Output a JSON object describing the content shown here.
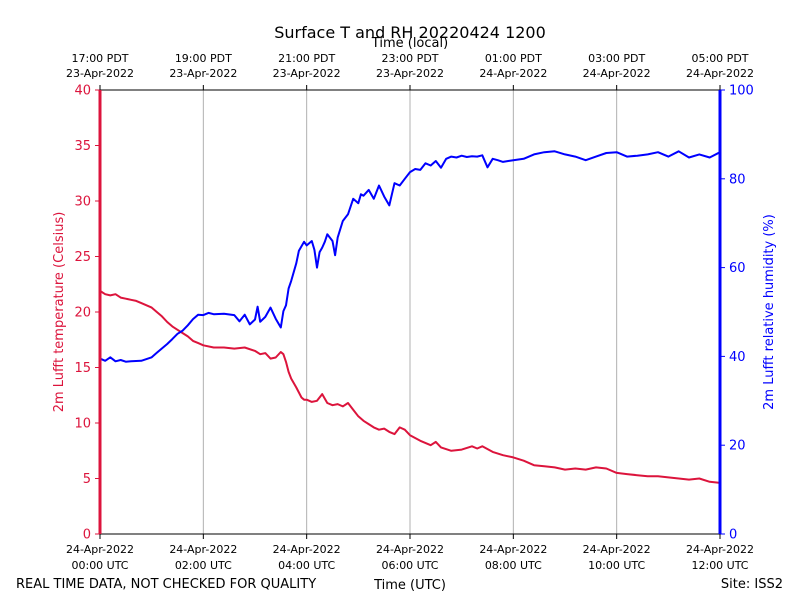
{
  "colors": {
    "temperature": "#dc143c",
    "humidity": "#0000ff",
    "grid": "#b0b0b0",
    "axis": "#000000"
  },
  "footer": {
    "left_note": "REAL TIME DATA, NOT CHECKED FOR QUALITY",
    "site": "Site: ISS2"
  },
  "chart_data": {
    "type": "line",
    "title": "Surface T and RH 20220424 1200",
    "xlabel": "Time (UTC)",
    "xlabel_top": "Time (local)",
    "ylabel_left": "2m Lufft temperature (Celsius)",
    "ylabel_right": "2m Lufft relative humidity (%)",
    "x_unit": "hours since 2022-04-24 00:00 UTC",
    "xlim": [
      0,
      12
    ],
    "ylim_left": [
      0,
      40
    ],
    "ylim_right": [
      0,
      100
    ],
    "yticks_left": [
      0,
      5,
      10,
      15,
      20,
      25,
      30,
      35,
      40
    ],
    "yticks_right": [
      0,
      20,
      40,
      60,
      80,
      100
    ],
    "xticks": [
      0,
      2,
      4,
      6,
      8,
      10,
      12
    ],
    "xtick_labels_bottom": [
      [
        "24-Apr-2022",
        "00:00 UTC"
      ],
      [
        "24-Apr-2022",
        "02:00 UTC"
      ],
      [
        "24-Apr-2022",
        "04:00 UTC"
      ],
      [
        "24-Apr-2022",
        "06:00 UTC"
      ],
      [
        "24-Apr-2022",
        "08:00 UTC"
      ],
      [
        "24-Apr-2022",
        "10:00 UTC"
      ],
      [
        "24-Apr-2022",
        "12:00 UTC"
      ]
    ],
    "xtick_labels_top": [
      [
        "17:00 PDT",
        "23-Apr-2022"
      ],
      [
        "19:00 PDT",
        "23-Apr-2022"
      ],
      [
        "21:00 PDT",
        "23-Apr-2022"
      ],
      [
        "23:00 PDT",
        "23-Apr-2022"
      ],
      [
        "01:00 PDT",
        "24-Apr-2022"
      ],
      [
        "03:00 PDT",
        "24-Apr-2022"
      ],
      [
        "05:00 PDT",
        "24-Apr-2022"
      ]
    ],
    "grid": "vertical",
    "series": [
      {
        "name": "2m Lufft temperature",
        "axis": "left",
        "x": [
          0,
          0.1,
          0.2,
          0.3,
          0.4,
          0.5,
          0.6,
          0.7,
          0.8,
          0.9,
          1.0,
          1.1,
          1.2,
          1.3,
          1.4,
          1.5,
          1.6,
          1.7,
          1.8,
          1.9,
          2.0,
          2.2,
          2.4,
          2.6,
          2.8,
          3.0,
          3.1,
          3.2,
          3.3,
          3.4,
          3.5,
          3.55,
          3.6,
          3.65,
          3.7,
          3.8,
          3.9,
          3.95,
          4.0,
          4.1,
          4.2,
          4.3,
          4.4,
          4.5,
          4.6,
          4.7,
          4.8,
          4.9,
          5.0,
          5.1,
          5.2,
          5.3,
          5.4,
          5.5,
          5.6,
          5.7,
          5.8,
          5.9,
          6.0,
          6.2,
          6.4,
          6.5,
          6.6,
          6.8,
          7.0,
          7.2,
          7.3,
          7.4,
          7.6,
          7.8,
          8.0,
          8.2,
          8.4,
          8.6,
          8.8,
          9.0,
          9.2,
          9.4,
          9.6,
          9.8,
          10.0,
          10.2,
          10.4,
          10.6,
          10.8,
          11.0,
          11.2,
          11.4,
          11.6,
          11.8,
          12.0
        ],
        "values": [
          21.9,
          21.6,
          21.5,
          21.6,
          21.3,
          21.2,
          21.1,
          21.0,
          20.8,
          20.6,
          20.4,
          20.0,
          19.6,
          19.1,
          18.7,
          18.4,
          18.1,
          17.8,
          17.4,
          17.2,
          17.0,
          16.8,
          16.8,
          16.7,
          16.8,
          16.5,
          16.2,
          16.3,
          15.8,
          15.9,
          16.4,
          16.2,
          15.5,
          14.6,
          14.0,
          13.2,
          12.3,
          12.1,
          12.1,
          11.9,
          12.0,
          12.6,
          11.8,
          11.6,
          11.7,
          11.5,
          11.8,
          11.2,
          10.6,
          10.2,
          9.9,
          9.6,
          9.4,
          9.5,
          9.2,
          9.0,
          9.6,
          9.4,
          8.9,
          8.4,
          8.0,
          8.3,
          7.8,
          7.5,
          7.6,
          7.9,
          7.7,
          7.9,
          7.4,
          7.1,
          6.9,
          6.6,
          6.2,
          6.1,
          6.0,
          5.8,
          5.9,
          5.8,
          6.0,
          5.9,
          5.5,
          5.4,
          5.3,
          5.2,
          5.2,
          5.1,
          5.0,
          4.9,
          5.0,
          4.7,
          4.6
        ]
      },
      {
        "name": "2m Lufft relative humidity",
        "axis": "right",
        "x": [
          0,
          0.1,
          0.2,
          0.3,
          0.4,
          0.5,
          0.6,
          0.8,
          1.0,
          1.1,
          1.2,
          1.3,
          1.4,
          1.5,
          1.6,
          1.7,
          1.8,
          1.9,
          2.0,
          2.1,
          2.2,
          2.4,
          2.6,
          2.7,
          2.8,
          2.9,
          3.0,
          3.05,
          3.1,
          3.2,
          3.3,
          3.4,
          3.5,
          3.55,
          3.6,
          3.65,
          3.7,
          3.8,
          3.85,
          3.9,
          3.95,
          4.0,
          4.1,
          4.15,
          4.2,
          4.25,
          4.3,
          4.35,
          4.4,
          4.5,
          4.55,
          4.6,
          4.7,
          4.8,
          4.9,
          5.0,
          5.05,
          5.1,
          5.2,
          5.3,
          5.35,
          5.4,
          5.5,
          5.6,
          5.7,
          5.8,
          5.9,
          6.0,
          6.1,
          6.2,
          6.3,
          6.4,
          6.5,
          6.6,
          6.7,
          6.8,
          6.9,
          7.0,
          7.1,
          7.2,
          7.3,
          7.4,
          7.5,
          7.6,
          7.7,
          7.8,
          7.9,
          8.0,
          8.2,
          8.4,
          8.6,
          8.8,
          9.0,
          9.2,
          9.4,
          9.6,
          9.8,
          10.0,
          10.2,
          10.4,
          10.6,
          10.8,
          11.0,
          11.2,
          11.4,
          11.6,
          11.8,
          12.0
        ],
        "values": [
          39.5,
          39.0,
          39.8,
          38.9,
          39.2,
          38.8,
          38.9,
          39.0,
          39.8,
          40.8,
          41.8,
          42.8,
          43.9,
          45.1,
          45.8,
          47.0,
          48.4,
          49.4,
          49.3,
          49.8,
          49.5,
          49.6,
          49.3,
          47.9,
          49.4,
          47.2,
          48.3,
          51.2,
          47.8,
          48.9,
          51.0,
          48.5,
          46.5,
          50.2,
          51.5,
          55.3,
          57.0,
          61.0,
          63.8,
          64.8,
          65.8,
          65.0,
          66.0,
          64.0,
          60.0,
          63.5,
          64.5,
          65.8,
          67.5,
          66.0,
          62.8,
          66.8,
          70.5,
          72.0,
          75.5,
          74.5,
          76.5,
          76.2,
          77.5,
          75.5,
          77.0,
          78.5,
          76.0,
          74.0,
          79.0,
          78.5,
          80.0,
          81.5,
          82.2,
          82.0,
          83.5,
          83.0,
          84.0,
          82.5,
          84.5,
          85.0,
          84.8,
          85.2,
          84.9,
          85.1,
          85.0,
          85.3,
          82.6,
          84.5,
          84.2,
          83.8,
          84.0,
          84.2,
          84.5,
          85.5,
          86.0,
          86.2,
          85.5,
          85.0,
          84.2,
          85.0,
          85.8,
          86.0,
          85.0,
          85.2,
          85.5,
          86.0,
          85.0,
          86.2,
          84.8,
          85.5,
          84.8,
          86.0
        ]
      }
    ]
  }
}
